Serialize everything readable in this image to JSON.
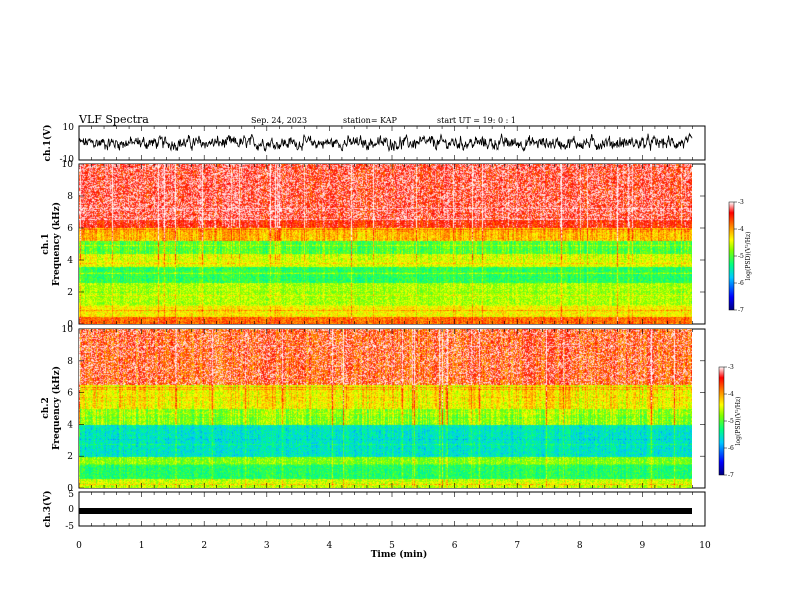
{
  "header": {
    "title": "VLF Spectra",
    "date": "Sep. 24, 2023",
    "station": "station= KAP",
    "start": "start UT =   19: 0 : 1"
  },
  "chart_data": [
    {
      "type": "line",
      "panel": "ch1-waveform",
      "ylabel": "ch.1(V)",
      "ylim": [
        -10,
        10
      ],
      "yticks": [
        "10",
        "-10"
      ],
      "xlim": [
        0,
        10
      ],
      "series_summary": {
        "mean": 0,
        "min": -4,
        "max": 5
      },
      "note_color": "#000000"
    },
    {
      "type": "heatmap",
      "panel": "ch1-spectrogram",
      "ylabel": "ch.1\nFrequency (kHz)",
      "ylabel_line1": "ch.1",
      "ylabel_line2": "Frequency (kHz)",
      "ylim": [
        0,
        10
      ],
      "yticks": [
        "0",
        "2",
        "4",
        "6",
        "8",
        "10"
      ],
      "xlim": [
        0,
        9.85
      ],
      "colorbar": {
        "label": "log(PSD)(V²/Hz)",
        "range": [
          -7,
          -3
        ],
        "ticks": [
          "-3",
          "-4",
          "-5",
          "-6",
          "-7"
        ],
        "colormap": [
          "#000080",
          "#0000ff",
          "#00c8ff",
          "#00ff80",
          "#80ff00",
          "#ffff00",
          "#ff8000",
          "#ff0000",
          "#ffffff"
        ]
      }
    },
    {
      "type": "heatmap",
      "panel": "ch2-spectrogram",
      "ylabel_line1": "ch.2",
      "ylabel_line2": "Frequency (kHz)",
      "ylim": [
        0,
        10
      ],
      "yticks": [
        "0",
        "2",
        "4",
        "6",
        "8",
        "10"
      ],
      "xlim": [
        0,
        9.85
      ],
      "colorbar": {
        "label": "log(PSD)(V²/Hz)",
        "range": [
          -7,
          -3
        ],
        "ticks": [
          "-3",
          "-4",
          "-5",
          "-6",
          "-7"
        ]
      }
    },
    {
      "type": "line",
      "panel": "ch3-waveform",
      "ylabel": "ch.3(V)",
      "ylim": [
        -5,
        5
      ],
      "yticks": [
        "5",
        "0",
        "-5"
      ],
      "xlim": [
        0,
        10
      ],
      "series_summary": {
        "level": -0.3
      },
      "xlabel": "Time (min)",
      "xticks": [
        "0",
        "1",
        "2",
        "3",
        "4",
        "5",
        "6",
        "7",
        "8",
        "9",
        "10"
      ]
    }
  ]
}
